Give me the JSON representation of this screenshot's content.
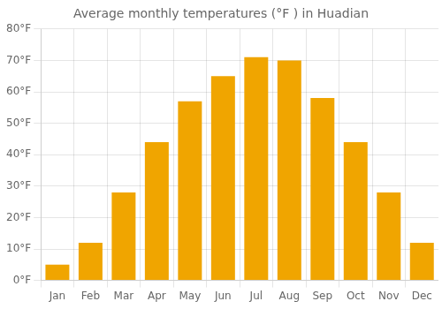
{
  "chart_data": {
    "type": "bar",
    "title": "Average monthly temperatures (°F ) in Huadian",
    "categories": [
      "Jan",
      "Feb",
      "Mar",
      "Apr",
      "May",
      "Jun",
      "Jul",
      "Aug",
      "Sep",
      "Oct",
      "Nov",
      "Dec"
    ],
    "values": [
      5,
      12,
      28,
      44,
      57,
      65,
      71,
      70,
      58,
      44,
      28,
      12
    ],
    "color": "#F0A500",
    "ylim": [
      0,
      80
    ],
    "yticks": [
      {
        "value": 0,
        "label": "0°F"
      },
      {
        "value": 10,
        "label": "10°F"
      },
      {
        "value": 20,
        "label": "20°F"
      },
      {
        "value": 30,
        "label": "30°F"
      },
      {
        "value": 40,
        "label": "40°F"
      },
      {
        "value": 50,
        "label": "50°F"
      },
      {
        "value": 60,
        "label": "60°F"
      },
      {
        "value": 70,
        "label": "70°F"
      },
      {
        "value": 80,
        "label": "80°F"
      }
    ],
    "grid": true
  }
}
